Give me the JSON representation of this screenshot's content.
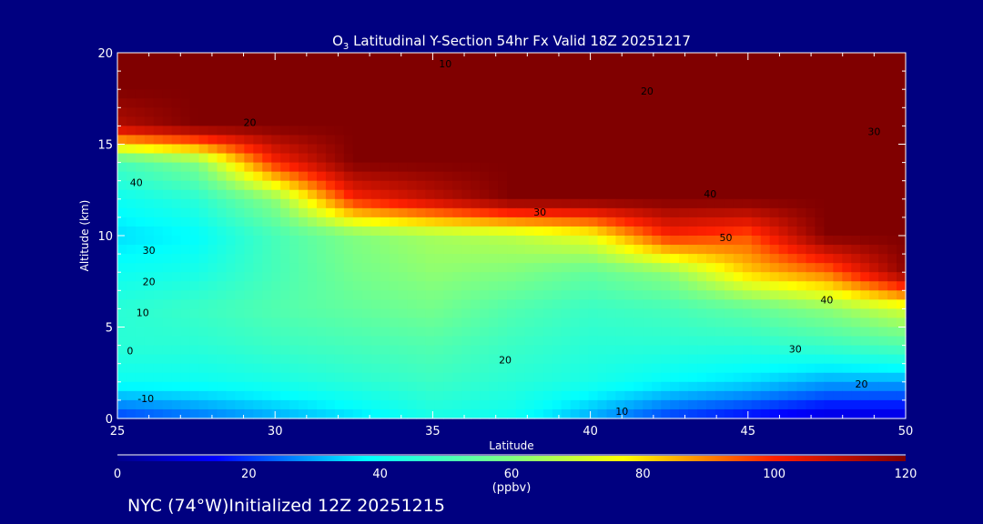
{
  "chart_data": {
    "type": "heatmap",
    "title_main": "O",
    "title_sub": "3",
    "title_rest": " Latitudinal Y-Section 54hr  Fx Valid 18Z 20251217",
    "xlabel": "Latitude",
    "ylabel": "Altitude (km)",
    "xlim": [
      25,
      50
    ],
    "ylim": [
      0,
      20
    ],
    "xticks": [
      "25",
      "30",
      "35",
      "40",
      "45",
      "50"
    ],
    "yticks": [
      "0",
      "5",
      "10",
      "15",
      "20"
    ],
    "lat": [
      25,
      27.5,
      30,
      32.5,
      35,
      37.5,
      40,
      42.5,
      45,
      47.5,
      50
    ],
    "alt": [
      0,
      2,
      4,
      6,
      8,
      10,
      12,
      14,
      16,
      18,
      20
    ],
    "values": [
      [
        20,
        25,
        30,
        35,
        42,
        40,
        30,
        20,
        15,
        10,
        10
      ],
      [
        40,
        40,
        42,
        45,
        48,
        45,
        42,
        38,
        35,
        30,
        30
      ],
      [
        45,
        45,
        48,
        50,
        52,
        48,
        45,
        45,
        45,
        48,
        52
      ],
      [
        45,
        48,
        52,
        55,
        58,
        52,
        48,
        50,
        55,
        62,
        72
      ],
      [
        40,
        42,
        50,
        58,
        62,
        60,
        55,
        62,
        82,
        92,
        118
      ],
      [
        35,
        38,
        50,
        60,
        65,
        68,
        75,
        100,
        95,
        120,
        120
      ],
      [
        40,
        45,
        62,
        100,
        110,
        120,
        120,
        120,
        120,
        120,
        120
      ],
      [
        50,
        60,
        100,
        120,
        120,
        120,
        120,
        120,
        120,
        120,
        120
      ],
      [
        112,
        120,
        120,
        120,
        120,
        120,
        120,
        120,
        120,
        120,
        120
      ],
      [
        120,
        120,
        120,
        120,
        120,
        120,
        120,
        120,
        120,
        120,
        120
      ],
      [
        120,
        120,
        120,
        120,
        120,
        120,
        120,
        120,
        120,
        120,
        120
      ]
    ],
    "contour_labels": [
      {
        "text": "10",
        "lat": 35.4,
        "alt": 19.4
      },
      {
        "text": "20",
        "lat": 41.8,
        "alt": 17.9
      },
      {
        "text": "20",
        "lat": 29.2,
        "alt": 16.2
      },
      {
        "text": "30",
        "lat": 49.0,
        "alt": 15.7
      },
      {
        "text": "40",
        "lat": 25.6,
        "alt": 12.9
      },
      {
        "text": "40",
        "lat": 43.8,
        "alt": 12.3
      },
      {
        "text": "30",
        "lat": 38.4,
        "alt": 11.3
      },
      {
        "text": "50",
        "lat": 44.3,
        "alt": 9.9
      },
      {
        "text": "30",
        "lat": 26.0,
        "alt": 9.2
      },
      {
        "text": "20",
        "lat": 26.0,
        "alt": 7.5
      },
      {
        "text": "10",
        "lat": 25.8,
        "alt": 5.8
      },
      {
        "text": "0",
        "lat": 25.4,
        "alt": 3.7
      },
      {
        "text": "-10",
        "lat": 25.9,
        "alt": 1.1
      },
      {
        "text": "20",
        "lat": 37.3,
        "alt": 3.2
      },
      {
        "text": "40",
        "lat": 47.5,
        "alt": 6.5
      },
      {
        "text": "30",
        "lat": 46.5,
        "alt": 3.8
      },
      {
        "text": "20",
        "lat": 48.6,
        "alt": 1.9
      },
      {
        "text": "10",
        "lat": 41.0,
        "alt": 0.4
      }
    ],
    "colorbar": {
      "range": [
        0,
        120
      ],
      "ticks": [
        "0",
        "20",
        "40",
        "60",
        "80",
        "100",
        "120"
      ],
      "unit": "(ppbv)",
      "stops": [
        {
          "v": 0,
          "c": "#00008c"
        },
        {
          "v": 15,
          "c": "#0000ff"
        },
        {
          "v": 38,
          "c": "#00ffff"
        },
        {
          "v": 60,
          "c": "#80ff80"
        },
        {
          "v": 77,
          "c": "#ffff00"
        },
        {
          "v": 100,
          "c": "#ff2000"
        },
        {
          "v": 120,
          "c": "#800000"
        }
      ]
    },
    "footer": "NYC (74°W)Initialized 12Z 20251215"
  }
}
